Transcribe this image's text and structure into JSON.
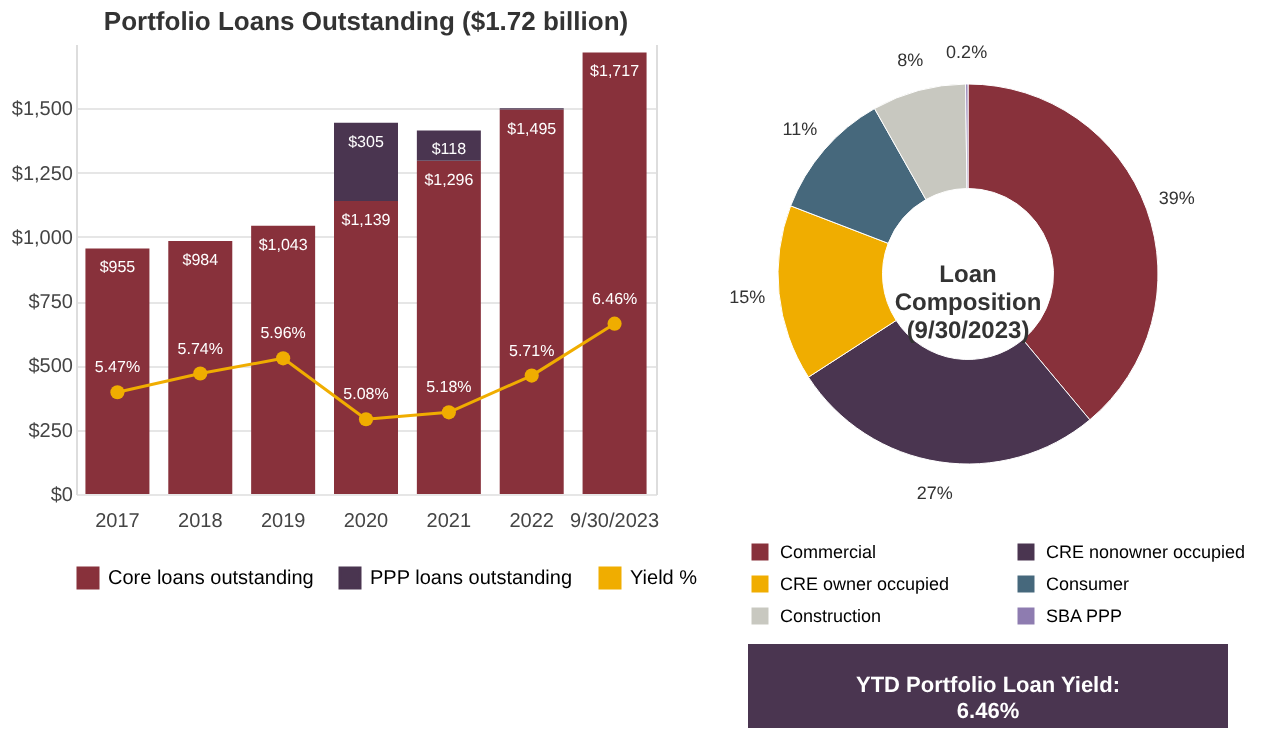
{
  "chart_data": [
    {
      "type": "bar",
      "title": "Portfolio Loans Outstanding ($1.72 billion)",
      "stacked": true,
      "categories": [
        "2017",
        "2018",
        "2019",
        "2020",
        "2021",
        "2022",
        "9/30/2023"
      ],
      "ylim": [
        0,
        1750
      ],
      "yticks": [
        {
          "value": 0,
          "label": "$0"
        },
        {
          "value": 250,
          "label": "$250"
        },
        {
          "value": 500,
          "label": "$500"
        },
        {
          "value": 750,
          "label": "$750"
        },
        {
          "value": 1000,
          "label": "$1,000"
        },
        {
          "value": 1250,
          "label": "$1,250"
        },
        {
          "value": 1500,
          "label": "$1,500"
        }
      ],
      "y2lim": [
        4,
        10.5
      ],
      "grid": "y",
      "legend": "bottom",
      "series": [
        {
          "name": "Core loans outstanding",
          "color": "#88313b",
          "values": [
            955,
            984,
            1043,
            1139,
            1296,
            1495,
            1717
          ],
          "value_labels": [
            "$955",
            "$984",
            "$1,043",
            "$1,139",
            "$1,296",
            "$1,495",
            "$1,717"
          ]
        },
        {
          "name": "PPP loans outstanding",
          "color": "#4a3550",
          "values": [
            null,
            null,
            null,
            305,
            118,
            5,
            null
          ],
          "value_labels": [
            null,
            null,
            null,
            "$305",
            "$118",
            null,
            null
          ]
        },
        {
          "name": "Yield %",
          "type": "line",
          "axis": "y2",
          "marker": "circle",
          "color": "#f0ad00",
          "values": [
            5.47,
            5.74,
            5.96,
            5.08,
            5.18,
            5.71,
            6.46
          ],
          "value_labels": [
            "5.47%",
            "5.74%",
            "5.96%",
            "5.08%",
            "5.18%",
            "5.71%",
            "6.46%"
          ]
        }
      ]
    },
    {
      "type": "donut",
      "title": "Loan Composition (9/30/2023)",
      "legend": "bottom",
      "categories": [
        "Commercial",
        "CRE nonowner occupied",
        "CRE owner occupied",
        "Consumer",
        "Construction",
        "SBA PPP"
      ],
      "values": [
        39,
        27,
        15,
        11,
        8,
        0.2
      ],
      "value_labels": [
        "39%",
        "27%",
        "15%",
        "11%",
        "8%",
        "0.2%"
      ],
      "colors": [
        "#88313b",
        "#4a3550",
        "#f0ad00",
        "#46687c",
        "#c8c8c0",
        "#8e7cb0"
      ]
    },
    {
      "type": "other",
      "title": "YTD Portfolio Loan Yield:",
      "annotations": [
        "6.46%"
      ],
      "color": "#4a3550"
    }
  ]
}
